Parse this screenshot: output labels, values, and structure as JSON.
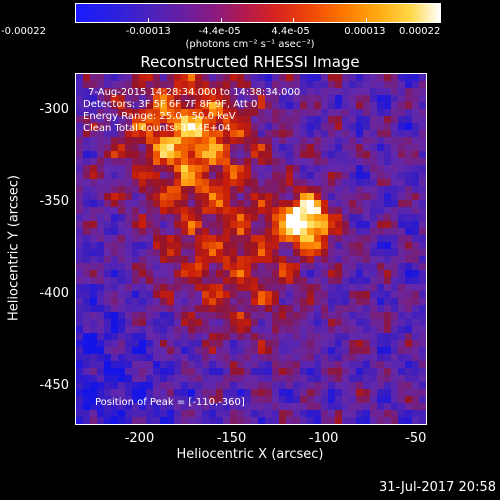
{
  "colorbar": {
    "ticks": [
      "-0.00022",
      "-0.00013",
      "-4.4e-05",
      "4.4e-05",
      "0.00013",
      "0.00022"
    ],
    "unit": "(photons cm⁻² s⁻¹ asec⁻²)"
  },
  "image": {
    "title": "Reconstructed RHESSI Image",
    "annotations": [
      "7-Aug-2015 14:28:34.000 to 14:38:34.000",
      "Detectors: 3F 5F 6F 7F 8F 9F, Att 0",
      "Energy Range: 25.0 - 50.0 keV",
      "Clean    Total counts: 1.44E+04"
    ],
    "peak_label": "Position of Peak = [-110,-360]",
    "xlabel": "Heliocentric X (arcsec)",
    "ylabel": "Heliocentric Y (arcsec)",
    "xticks": [
      "-200",
      "-150",
      "-100",
      "-50"
    ],
    "yticks": [
      "-300",
      "-350",
      "-400",
      "-450"
    ],
    "timestamp": "31-Jul-2017 20:58"
  },
  "chart_data": {
    "type": "heatmap",
    "title": "Reconstructed RHESSI Image",
    "xlabel": "Heliocentric X (arcsec)",
    "ylabel": "Heliocentric Y (arcsec)",
    "xlim": [
      -235,
      -45
    ],
    "ylim": [
      -470,
      -280
    ],
    "color_range": [
      -0.00022,
      0.00022
    ],
    "peak": {
      "x": -110,
      "y": -360
    }
  },
  "colors": {
    "background": "#000000",
    "text": "#ffffff"
  }
}
